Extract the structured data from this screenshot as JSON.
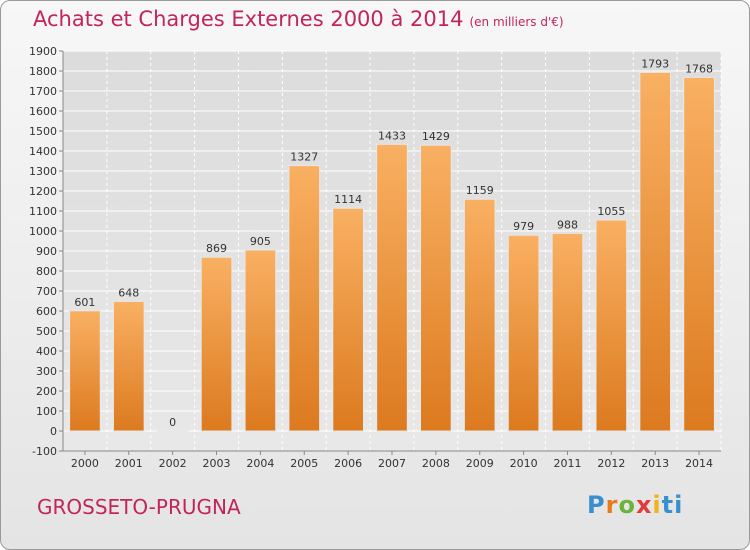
{
  "header": {
    "title": "Achats et Charges Externes 2000 à 2014",
    "unit": "(en milliers d'€)"
  },
  "footer": {
    "commune": "GROSSETO-PRUGNA",
    "logo_letters": [
      "P",
      "r",
      "o",
      "x",
      "i",
      "t",
      "i"
    ]
  },
  "chart_data": {
    "type": "bar",
    "title": "Achats et Charges Externes 2000 à 2014",
    "subtitle": "(en milliers d'€)",
    "xlabel": "",
    "ylabel": "",
    "categories": [
      "2000",
      "2001",
      "2002",
      "2003",
      "2004",
      "2005",
      "2006",
      "2007",
      "2008",
      "2009",
      "2010",
      "2011",
      "2012",
      "2013",
      "2014"
    ],
    "values": [
      601,
      648,
      0,
      869,
      905,
      1327,
      1114,
      1433,
      1429,
      1159,
      979,
      988,
      1055,
      1793,
      1768
    ],
    "data_labels": [
      "601",
      "648",
      "0",
      "869",
      "905",
      "1327",
      "1114",
      "1433",
      "1429",
      "1159",
      "979",
      "988",
      "1055",
      "1793",
      "1768"
    ],
    "ylim": [
      -100,
      1900
    ],
    "yticks": [
      -100,
      0,
      100,
      200,
      300,
      400,
      500,
      600,
      700,
      800,
      900,
      1000,
      1100,
      1200,
      1300,
      1400,
      1500,
      1600,
      1700,
      1800,
      1900
    ],
    "grid": true,
    "legend": "none",
    "colors": {
      "bar": "#f0953a",
      "bar_light": "#f8ad5c",
      "bar_dark": "#d97a22",
      "grid": "#ffffff",
      "title": "#c3245c"
    }
  }
}
